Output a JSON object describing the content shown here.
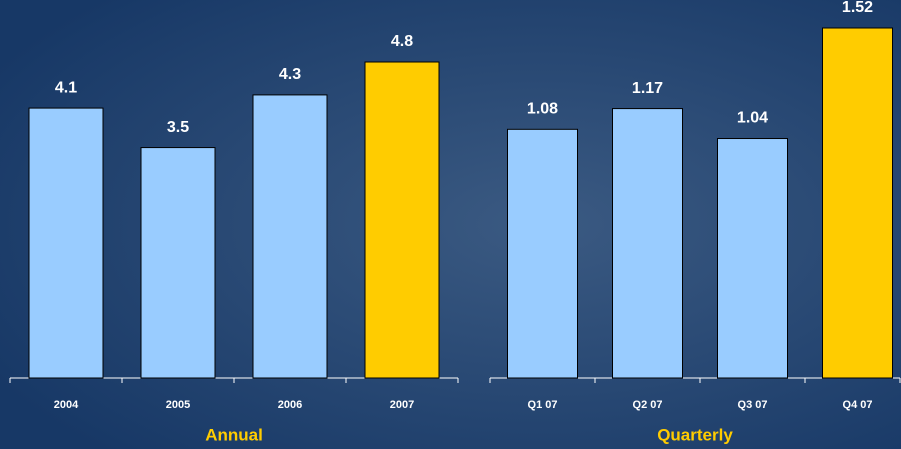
{
  "chart_data": [
    {
      "type": "bar",
      "categories": [
        "2004",
        "2005",
        "2006",
        "2007"
      ],
      "values": [
        4.1,
        3.5,
        4.3,
        4.8
      ],
      "colors": [
        "#99ccff",
        "#99ccff",
        "#99ccff",
        "#ffcc00"
      ],
      "xlabel": "Annual"
    },
    {
      "type": "bar",
      "categories": [
        "Q1 07",
        "Q2 07",
        "Q3 07",
        "Q4 07"
      ],
      "values": [
        1.08,
        1.17,
        1.04,
        1.52
      ],
      "colors": [
        "#99ccff",
        "#99ccff",
        "#99ccff",
        "#ffcc00"
      ],
      "xlabel": "Quarterly"
    }
  ]
}
